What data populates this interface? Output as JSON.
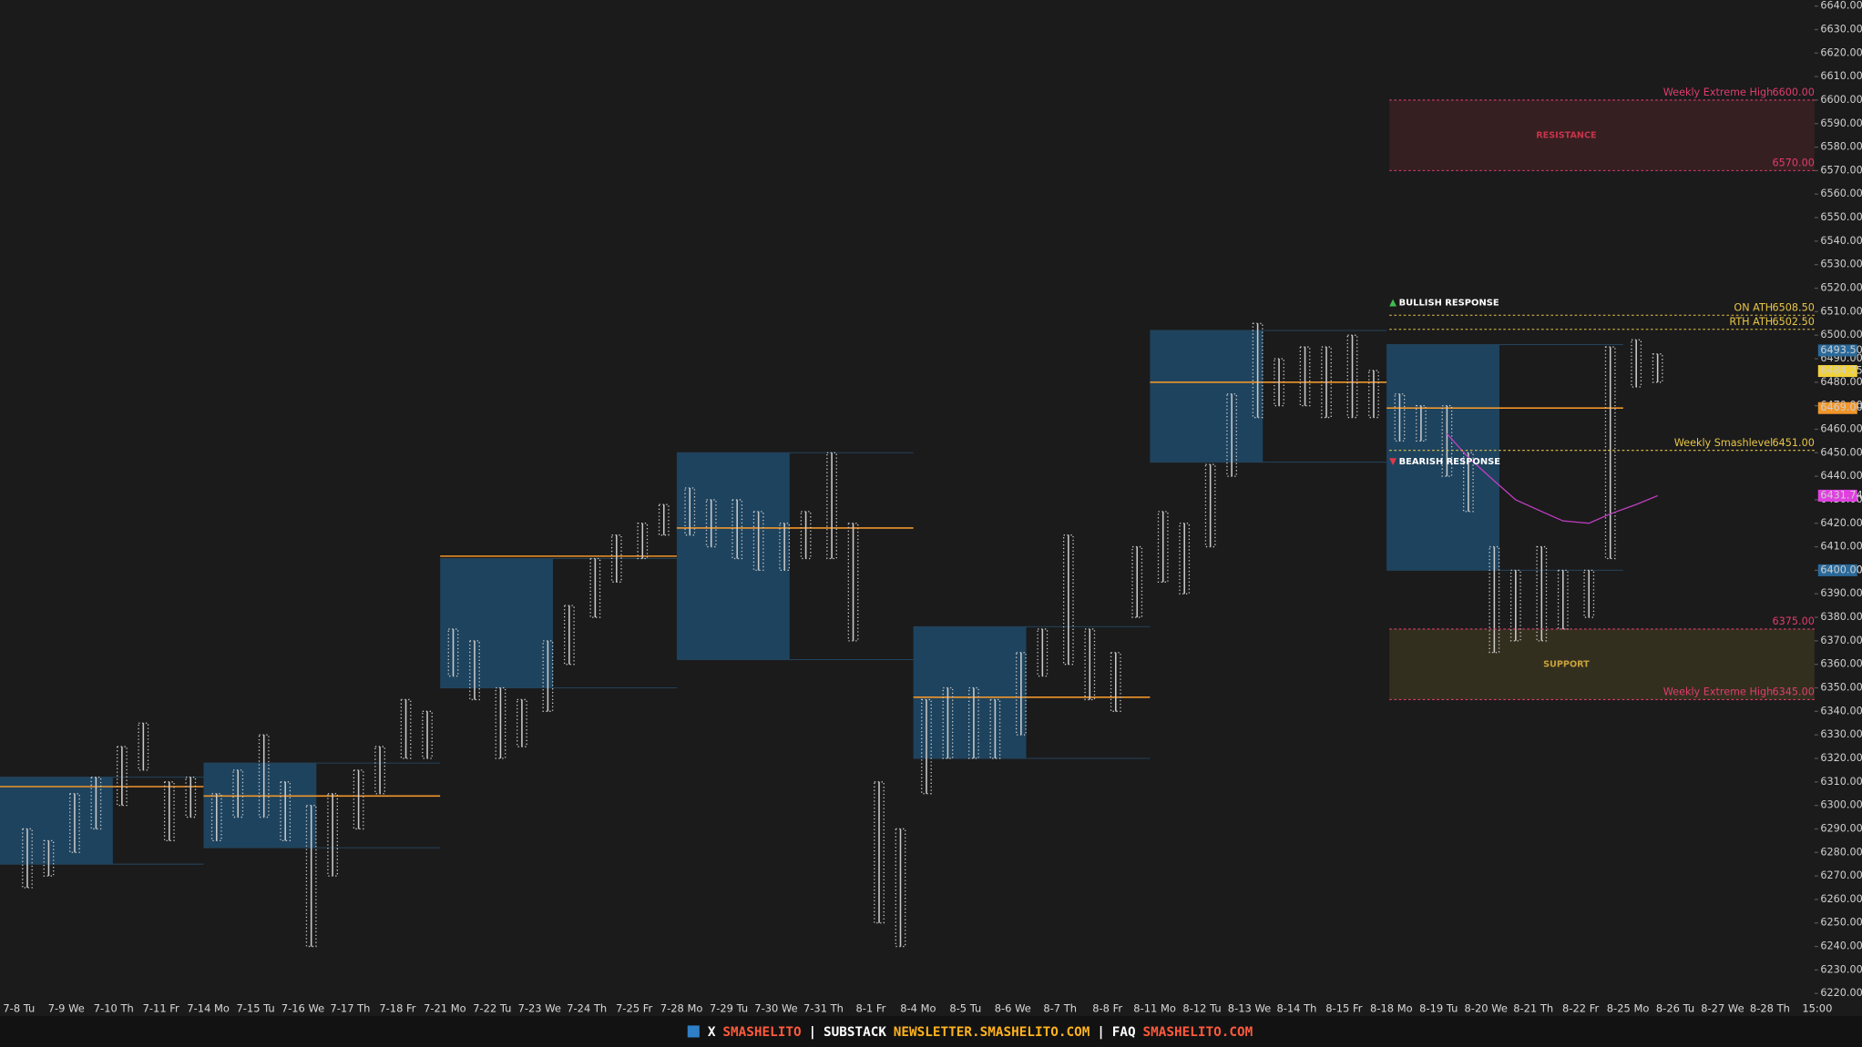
{
  "chart_data": {
    "type": "ohlc",
    "categories": [
      "7-8 Tu",
      "7-9 We",
      "7-10 Th",
      "7-11 Fr",
      "7-14 Mo",
      "7-15 Tu",
      "7-16 We",
      "7-17 Th",
      "7-18 Fr",
      "7-21 Mo",
      "7-22 Tu",
      "7-23 We",
      "7-24 Th",
      "7-25 Fr",
      "7-28 Mo",
      "7-29 Tu",
      "7-30 We",
      "7-31 Th",
      "8-1 Fr",
      "8-4 Mo",
      "8-5 Tu",
      "8-6 We",
      "8-7 Th",
      "8-8 Fr",
      "8-11 Mo",
      "8-12 Tu",
      "8-13 We",
      "8-14 Th",
      "8-15 Fr",
      "8-18 Mo",
      "8-19 Tu",
      "8-20 We",
      "8-21 Th",
      "8-22 Fr",
      "8-25 Mo",
      "8-26 Tu",
      "8-27 We",
      "8-28 Th",
      "15:00"
    ],
    "lows": [
      6265,
      6270,
      6280,
      6290,
      6300,
      6315,
      6285,
      6295,
      6285,
      6295,
      6295,
      6285,
      6240,
      6270,
      6290,
      6305,
      6320,
      6320,
      6355,
      6345,
      6320,
      6325,
      6340,
      6360,
      6380,
      6395,
      6405,
      6415,
      6415,
      6410,
      6405,
      6400,
      6400,
      6405,
      6405,
      6370,
      6250,
      6240,
      6305,
      6320,
      6320,
      6320,
      6330,
      6355,
      6360,
      6345,
      6340,
      6380,
      6395,
      6390,
      6410,
      6440,
      6465,
      6470,
      6470,
      6465,
      6465,
      6465,
      6455,
      6455,
      6440,
      6425,
      6365,
      6370,
      6370,
      6375,
      6380,
      6405,
      6478,
      6480
    ],
    "highs": [
      6290,
      6285,
      6305,
      6312,
      6325,
      6335,
      6310,
      6312,
      6305,
      6315,
      6330,
      6310,
      6300,
      6305,
      6315,
      6325,
      6345,
      6340,
      6375,
      6370,
      6350,
      6345,
      6370,
      6385,
      6405,
      6415,
      6420,
      6428,
      6435,
      6430,
      6430,
      6425,
      6420,
      6425,
      6450,
      6420,
      6310,
      6290,
      6345,
      6350,
      6350,
      6345,
      6365,
      6375,
      6415,
      6375,
      6365,
      6410,
      6425,
      6420,
      6445,
      6475,
      6505,
      6490,
      6495,
      6495,
      6500,
      6485,
      6475,
      6470,
      6470,
      6450,
      6410,
      6400,
      6410,
      6400,
      6400,
      6495,
      6498,
      6492
    ],
    "bar_color": "#c9c9c9",
    "vwap": [
      null,
      null,
      null,
      null,
      null,
      null,
      null,
      null,
      null,
      null,
      null,
      null,
      null,
      null,
      null,
      null,
      null,
      null,
      null,
      null,
      null,
      null,
      null,
      null,
      null,
      null,
      null,
      null,
      null,
      null,
      null,
      null,
      null,
      null,
      null,
      null,
      null,
      null,
      null,
      null,
      null,
      null,
      null,
      null,
      null,
      null,
      null,
      null,
      null,
      null,
      null,
      null,
      null,
      null,
      null,
      null,
      null,
      null,
      null,
      null,
      6458,
      6448,
      6438,
      6430,
      6425,
      6421,
      6420,
      6424,
      6428,
      6431.74
    ],
    "vwap_color": "#c23fc2",
    "profiles": [
      {
        "val": 6275,
        "vah": 6312,
        "poc": 6308
      },
      {
        "val": 6282,
        "vah": 6318,
        "poc": 6304
      },
      {
        "val": 6350,
        "vah": 6405,
        "poc": 6406
      },
      {
        "val": 6362,
        "vah": 6450,
        "poc": 6418
      },
      {
        "val": 6320,
        "vah": 6376,
        "poc": 6346
      },
      {
        "val": 6446,
        "vah": 6502,
        "poc": 6480
      },
      {
        "val": 6400,
        "vah": 6496,
        "poc": 6469
      }
    ],
    "profile_color": "#1f4866",
    "poc_color": "#f0962a",
    "ylim": [
      6220,
      6640
    ],
    "yticks": [
      {
        "value": 6640,
        "label": "6640.00"
      },
      {
        "value": 6630,
        "label": "6630.00"
      },
      {
        "value": 6620,
        "label": "6620.00"
      },
      {
        "value": 6610,
        "label": "6610.00"
      },
      {
        "value": 6600,
        "label": "6600.00"
      },
      {
        "value": 6590,
        "label": "6590.00"
      },
      {
        "value": 6580,
        "label": "6580.00"
      },
      {
        "value": 6570,
        "label": "6570.00"
      },
      {
        "value": 6560,
        "label": "6560.00"
      },
      {
        "value": 6550,
        "label": "6550.00"
      },
      {
        "value": 6540,
        "label": "6540.00"
      },
      {
        "value": 6530,
        "label": "6530.00"
      },
      {
        "value": 6520,
        "label": "6520.00"
      },
      {
        "value": 6510,
        "label": "6510.00"
      },
      {
        "value": 6500,
        "label": "6500.00"
      },
      {
        "value": 6490,
        "label": "6490.00"
      },
      {
        "value": 6480,
        "label": "6480.00"
      },
      {
        "value": 6470,
        "label": "6470.00"
      },
      {
        "value": 6460,
        "label": "6460.00"
      },
      {
        "value": 6450,
        "label": "6450.00"
      },
      {
        "value": 6440,
        "label": "6440.00"
      },
      {
        "value": 6430,
        "label": "6430.00"
      },
      {
        "value": 6420,
        "label": "6420.00"
      },
      {
        "value": 6410,
        "label": "6410.00"
      },
      {
        "value": 6400,
        "label": "6400.00"
      },
      {
        "value": 6390,
        "label": "6390.00"
      },
      {
        "value": 6380,
        "label": "6380.00"
      },
      {
        "value": 6370,
        "label": "6370.00"
      },
      {
        "value": 6360,
        "label": "6360.00"
      },
      {
        "value": 6350,
        "label": "6350.00"
      },
      {
        "value": 6340,
        "label": "6340.00"
      },
      {
        "value": 6330,
        "label": "6330.00"
      },
      {
        "value": 6320,
        "label": "6320.00"
      },
      {
        "value": 6310,
        "label": "6310.00"
      },
      {
        "value": 6300,
        "label": "6300.00"
      },
      {
        "value": 6290,
        "label": "6290.00"
      },
      {
        "value": 6280,
        "label": "6280.00"
      },
      {
        "value": 6270,
        "label": "6270.00"
      },
      {
        "value": 6260,
        "label": "6260.00"
      },
      {
        "value": 6250,
        "label": "6250.00"
      },
      {
        "value": 6240,
        "label": "6240.00"
      },
      {
        "value": 6230,
        "label": "6230.00"
      },
      {
        "value": 6220,
        "label": "6220.00"
      }
    ],
    "levels": [
      {
        "name": "Weekly Extreme High",
        "value": 6600,
        "label": "6600.00",
        "color": "#e03c6e"
      },
      {
        "value": 6570,
        "label": "6570.00",
        "color": "#e03c6e"
      },
      {
        "name": "ON ATH",
        "value": 6508.5,
        "label": "6508.50",
        "color": "#e8c547"
      },
      {
        "name": "RTH ATH",
        "value": 6502.5,
        "label": "6502.50",
        "color": "#e8c547"
      },
      {
        "name": "Weekly Smashlevel",
        "value": 6451,
        "label": "6451.00",
        "color": "#e8c547"
      },
      {
        "value": 6375,
        "label": "6375.00",
        "color": "#e03c6e"
      },
      {
        "name": "Weekly Extreme High",
        "value": 6345,
        "label": "6345.00",
        "color": "#e03c6e"
      }
    ],
    "zones": [
      {
        "name": "RESISTANCE",
        "low": 6570,
        "high": 6600,
        "color": "#3a2022",
        "text_color": "#c8344a"
      },
      {
        "name": "SUPPORT",
        "low": 6345,
        "high": 6375,
        "color": "#36321f",
        "text_color": "#c9a23a"
      }
    ],
    "price_tags": [
      {
        "value": 6493.5,
        "label": "6493.50",
        "color": "#2a6a9a"
      },
      {
        "value": 6484.75,
        "color": "#f2d13a"
      },
      {
        "value": 6469,
        "label": "6469.00",
        "color": "#f0962a"
      },
      {
        "value": 6431.74,
        "color": "#e040e0"
      },
      {
        "value": 6400,
        "label": "6400.00",
        "color": "#2a6a9a"
      }
    ]
  },
  "annotations": {
    "bullish": "BULLISH RESPONSE",
    "bearish": "BEARISH RESPONSE"
  },
  "footer": [
    {
      "text": "X",
      "color": "#ffffff"
    },
    {
      "text": "SMASHELITO",
      "color": "#ff5a3c"
    },
    {
      "text": "|",
      "color": "#ffffff"
    },
    {
      "text": "SUBSTACK",
      "color": "#ffffff"
    },
    {
      "text": "NEWSLETTER.SMASHELITO.COM",
      "color": "#ffb21e"
    },
    {
      "text": "|",
      "color": "#ffffff"
    },
    {
      "text": "FAQ",
      "color": "#ffffff"
    },
    {
      "text": "SMASHELITO.COM",
      "color": "#ff5a3c"
    }
  ]
}
